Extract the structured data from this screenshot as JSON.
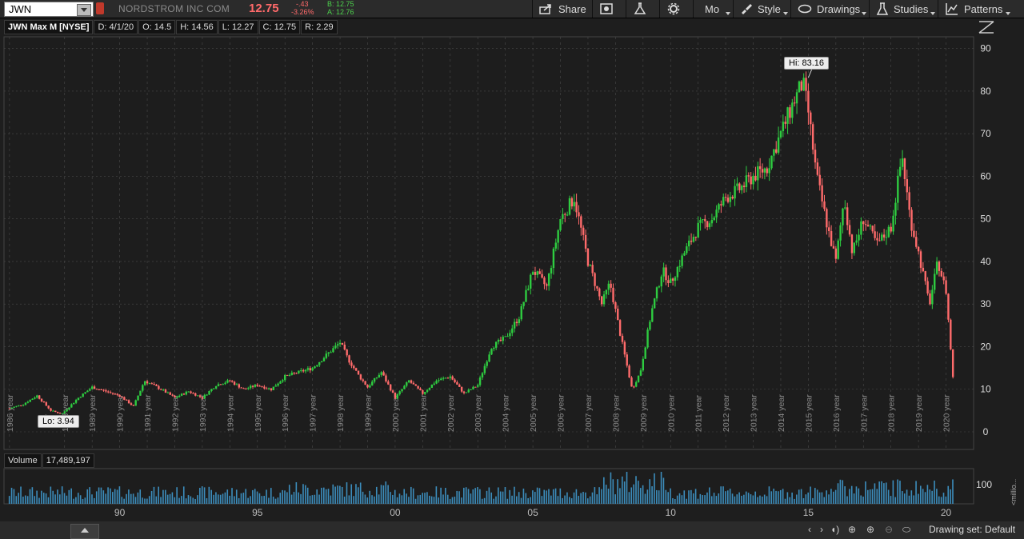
{
  "header": {
    "symbol": "JWN",
    "company": "NORDSTROM INC COM",
    "last": "12.75",
    "change": "-.43",
    "change_pct": "-3.26%",
    "bid": "B: 12.75",
    "ask": "A: 12.76",
    "buttons": {
      "share": "Share",
      "mode": "Mo",
      "style": "Style",
      "drawings": "Drawings",
      "studies": "Studies",
      "patterns": "Patterns"
    }
  },
  "infobar": {
    "title": "JWN Max M [NYSE]",
    "date": "D: 4/1/20",
    "open": "O: 14.5",
    "high": "H: 14.56",
    "low": "L: 12.27",
    "close": "C: 12.75",
    "range": "R: 2.29"
  },
  "volume": {
    "label": "Volume",
    "value": "17,489,197",
    "axis_tick": "100",
    "units": "<millio..."
  },
  "footer": {
    "drawing_set": "Drawing set: Default"
  },
  "colors": {
    "up": "#2ecc40",
    "down": "#ff6b6b",
    "volume": "#3c8dbc",
    "grid": "#4a4a4a"
  },
  "chart_data": {
    "type": "line",
    "title": "JWN Max M [NYSE]",
    "y_ticks": [
      0,
      10,
      20,
      30,
      40,
      50,
      60,
      70,
      80,
      90
    ],
    "ylim": [
      0,
      92
    ],
    "x_year_labels": [
      "1986 year",
      "1988 year",
      "1989 year",
      "1990 year",
      "1991 year",
      "1992 year",
      "1993 year",
      "1994 year",
      "1995 year",
      "1996 year",
      "1997 year",
      "1998 year",
      "1999 year",
      "2000 year",
      "2001 year",
      "2002 year",
      "2003 year",
      "2004 year",
      "2005 year",
      "2006 year",
      "2007 year",
      "2008 year",
      "2009 year",
      "2010 year",
      "2011 year",
      "2012 year",
      "2013 year",
      "2014 year",
      "2015 year",
      "2016 year",
      "2017 year",
      "2018 year",
      "2019 year",
      "2020 year"
    ],
    "volume_x_labels": [
      "90",
      "95",
      "00",
      "05",
      "10",
      "15",
      "20"
    ],
    "annotations": [
      {
        "text": "Hi: 83.16",
        "x": 2015.0,
        "y": 83.16
      },
      {
        "text": "Lo: 3.94",
        "x": 1987.3,
        "y": 3.94
      }
    ],
    "series": [
      {
        "name": "JWN",
        "x": [
          1986.0,
          1986.5,
          1987.0,
          1987.5,
          1987.9,
          1988.5,
          1989.0,
          1989.5,
          1990.0,
          1990.5,
          1990.9,
          1991.5,
          1992.0,
          1992.5,
          1993.0,
          1993.5,
          1994.0,
          1994.5,
          1995.0,
          1995.5,
          1996.0,
          1996.5,
          1997.0,
          1997.5,
          1998.0,
          1998.3,
          1998.7,
          1999.0,
          1999.5,
          2000.0,
          2000.5,
          2001.0,
          2001.5,
          2002.0,
          2002.5,
          2003.0,
          2003.5,
          2004.0,
          2004.5,
          2005.0,
          2005.5,
          2006.0,
          2006.5,
          2007.0,
          2007.5,
          2007.8,
          2008.2,
          2008.6,
          2008.9,
          2009.3,
          2009.7,
          2010.0,
          2010.5,
          2011.0,
          2011.5,
          2012.0,
          2012.5,
          2013.0,
          2013.5,
          2014.0,
          2014.5,
          2014.8,
          2015.0,
          2015.3,
          2015.7,
          2016.0,
          2016.3,
          2016.6,
          2017.0,
          2017.5,
          2018.0,
          2018.4,
          2018.7,
          2019.0,
          2019.4,
          2019.7,
          2020.0,
          2020.25
        ],
        "values": [
          5.5,
          6.5,
          8.5,
          5.0,
          4.2,
          8.0,
          10.5,
          9.5,
          8.5,
          6.0,
          12.0,
          10.0,
          8.0,
          9.5,
          8.0,
          11.0,
          12.0,
          10.0,
          11.0,
          10.0,
          13.0,
          14.0,
          15.0,
          18.0,
          21.0,
          17.0,
          13.0,
          10.5,
          14.0,
          8.0,
          12.0,
          9.0,
          12.0,
          13.0,
          9.0,
          11.0,
          20.0,
          22.0,
          27.0,
          38.0,
          34.0,
          50.0,
          55.0,
          40.0,
          30.0,
          35.0,
          22.0,
          10.0,
          14.0,
          28.0,
          38.0,
          35.0,
          42.0,
          48.0,
          50.0,
          55.0,
          57.0,
          60.0,
          62.0,
          70.0,
          78.0,
          82.0,
          75.0,
          60.0,
          48.0,
          40.0,
          55.0,
          42.0,
          50.0,
          44.0,
          48.0,
          65.0,
          50.0,
          42.0,
          30.0,
          40.0,
          33.0,
          12.75
        ]
      }
    ]
  }
}
